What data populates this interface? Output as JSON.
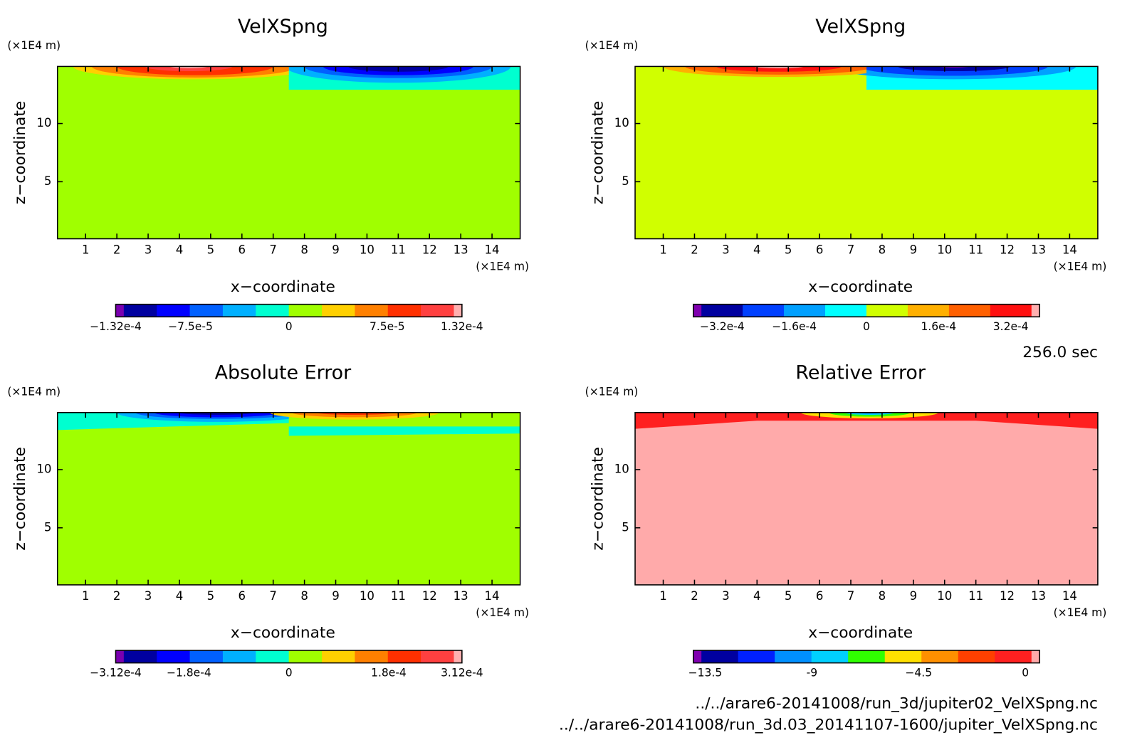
{
  "panels": [
    {
      "title": "VelXSpng",
      "xlabel": "x−coordinate",
      "ylabel": "z−coordinate",
      "xunit": "(×1E4 m)",
      "yunit": "(×1E4 m)",
      "xlim": [
        0.1,
        14.9
      ],
      "ylim": [
        0.1,
        14.9
      ],
      "xticks": [
        1,
        2,
        3,
        4,
        5,
        6,
        7,
        8,
        9,
        10,
        11,
        12,
        13,
        14
      ],
      "yticks": [
        5,
        10
      ],
      "colorbar": {
        "lim": [
          -0.000132,
          0.000132
        ],
        "colors": [
          "#7a00b0",
          "#0000a0",
          "#0000ff",
          "#0060ff",
          "#00b0ff",
          "#00ffd0",
          "#a0ff00",
          "#ffd000",
          "#ff8000",
          "#ff3000",
          "#ff4040",
          "#ffb0b0"
        ],
        "ticks": [
          {
            "value": -0.000132,
            "label": "−1.32e-4"
          },
          {
            "value": -7.5e-05,
            "label": "−7.5e-5"
          },
          0,
          {
            "value": 7.5e-05,
            "label": "7.5e-5"
          },
          {
            "value": 0.000132,
            "label": "1.32e-4"
          }
        ]
      }
    },
    {
      "title": "VelXSpng",
      "xlabel": "x−coordinate",
      "ylabel": "z−coordinate",
      "xunit": "(×1E4 m)",
      "yunit": "(×1E4 m)",
      "xlim": [
        0.1,
        14.9
      ],
      "ylim": [
        0.1,
        14.9
      ],
      "xticks": [
        1,
        2,
        3,
        4,
        5,
        6,
        7,
        8,
        9,
        10,
        11,
        12,
        13,
        14
      ],
      "yticks": [
        5,
        10
      ],
      "colorbar": {
        "lim": [
          -0.000384,
          0.000384
        ],
        "colors": [
          "#8000b0",
          "#0000a0",
          "#0040ff",
          "#00a0ff",
          "#00ffff",
          "#d0ff00",
          "#ffb000",
          "#ff6000",
          "#ff1010",
          "#ffb0b0"
        ],
        "ticks": [
          {
            "value": -0.00032,
            "label": "−3.2e-4"
          },
          {
            "value": -0.00016,
            "label": "−1.6e-4"
          },
          0,
          {
            "value": 0.00016,
            "label": "1.6e-4"
          },
          {
            "value": 0.00032,
            "label": "3.2e-4"
          }
        ]
      }
    },
    {
      "title": "Absolute Error",
      "xlabel": "x−coordinate",
      "ylabel": "z−coordinate",
      "xunit": "(×1E4 m)",
      "yunit": "(×1E4 m)",
      "xlim": [
        0.1,
        14.9
      ],
      "ylim": [
        0.1,
        14.9
      ],
      "xticks": [
        1,
        2,
        3,
        4,
        5,
        6,
        7,
        8,
        9,
        10,
        11,
        12,
        13,
        14
      ],
      "yticks": [
        5,
        10
      ],
      "colorbar": {
        "lim": [
          -0.000312,
          0.000312
        ],
        "colors": [
          "#7a00b0",
          "#0000a0",
          "#0000ff",
          "#0060ff",
          "#00b0ff",
          "#00ffd0",
          "#a0ff00",
          "#ffd000",
          "#ff8000",
          "#ff3000",
          "#ff4040",
          "#ffb0b0"
        ],
        "ticks": [
          {
            "value": -0.000312,
            "label": "−3.12e-4"
          },
          {
            "value": -0.00018,
            "label": "−1.8e-4"
          },
          0,
          {
            "value": 0.00018,
            "label": "1.8e-4"
          },
          {
            "value": 0.000312,
            "label": "3.12e-4"
          }
        ]
      }
    },
    {
      "title": "Relative Error",
      "xlabel": "x−coordinate",
      "ylabel": "z−coordinate",
      "xunit": "(×1E4 m)",
      "yunit": "(×1E4 m)",
      "xlim": [
        0.1,
        14.9
      ],
      "ylim": [
        0.1,
        14.9
      ],
      "xticks": [
        1,
        2,
        3,
        4,
        5,
        6,
        7,
        8,
        9,
        10,
        11,
        12,
        13,
        14
      ],
      "yticks": [
        5,
        10
      ],
      "colorbar": {
        "lim": [
          -14.0,
          0.6
        ],
        "colors": [
          "#8000b0",
          "#0000a0",
          "#0020ff",
          "#0090ff",
          "#00d0ff",
          "#30ff00",
          "#ffe000",
          "#ff9000",
          "#ff4000",
          "#ff2020",
          "#ffaaaa"
        ],
        "ticks": [
          {
            "value": -13.5,
            "label": "−13.5"
          },
          -9,
          {
            "value": -4.5,
            "label": "−4.5"
          },
          0
        ]
      }
    }
  ],
  "time": "256.0 sec",
  "files": [
    "../../arare6-20141008/run_3d/jupiter02_VelXSpng.nc",
    "../../arare6-20141008/run_3d.03_20141107-1600/jupiter_VelXSpng.nc"
  ]
}
